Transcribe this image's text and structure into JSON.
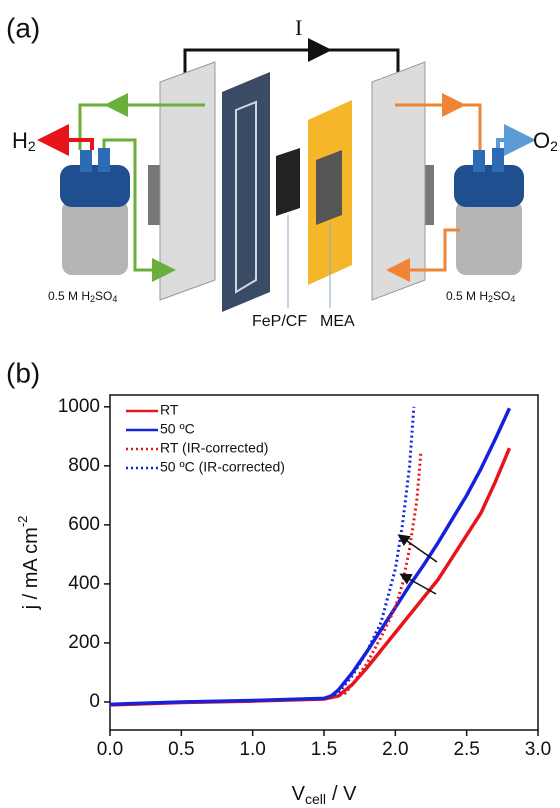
{
  "panel_a": {
    "label": "(a)",
    "current": "I",
    "h2": [
      "H",
      "2"
    ],
    "o2": [
      "O",
      "2"
    ],
    "acid_left": [
      "0.5 M H",
      "2",
      "SO",
      "4"
    ],
    "acid_right": [
      "0.5 M H",
      "2",
      "SO",
      "4"
    ],
    "catalyst": "FeP/CF",
    "membrane": "MEA"
  },
  "panel_b_label": "(b)",
  "chart_data": {
    "type": "line",
    "xlabel": [
      "V",
      "cell",
      "/ V"
    ],
    "ylabel": [
      "j / mA cm",
      "-2"
    ],
    "xlim": [
      0,
      3
    ],
    "ylim": [
      -95,
      1040
    ],
    "xticks": [
      {
        "value": 0,
        "label": "0.0"
      },
      {
        "value": 0.5,
        "label": "0.5"
      },
      {
        "value": 1,
        "label": "1.0"
      },
      {
        "value": 1.5,
        "label": "1.5"
      },
      {
        "value": 2,
        "label": "2.0"
      },
      {
        "value": 2.5,
        "label": "2.5"
      },
      {
        "value": 3,
        "label": "3.0"
      }
    ],
    "yticks": [
      0,
      200,
      400,
      600,
      800,
      1000
    ],
    "legend": "upper left",
    "series": [
      {
        "name": "RT",
        "color": "#e8141c",
        "style": "solid",
        "x": [
          0,
          0.5,
          1.0,
          1.5,
          1.6,
          1.7,
          1.8,
          1.9,
          2.0,
          2.1,
          2.2,
          2.3,
          2.4,
          2.5,
          2.6,
          2.7,
          2.8
        ],
        "values": [
          -10,
          -2,
          3,
          10,
          20,
          60,
          115,
          175,
          235,
          295,
          355,
          415,
          490,
          565,
          640,
          745,
          860
        ]
      },
      {
        "name": "50 ºC",
        "color": "#1422e0",
        "style": "solid",
        "x": [
          0,
          0.5,
          1.0,
          1.5,
          1.55,
          1.6,
          1.7,
          1.8,
          1.9,
          2.0,
          2.1,
          2.2,
          2.3,
          2.4,
          2.5,
          2.6,
          2.7,
          2.8
        ],
        "values": [
          -8,
          0,
          5,
          12,
          20,
          40,
          100,
          170,
          245,
          320,
          395,
          465,
          540,
          620,
          700,
          790,
          890,
          995
        ]
      },
      {
        "name": "RT (IR-corrected)",
        "color": "#e8141c",
        "style": "dotted",
        "x": [
          0,
          0.5,
          1.0,
          1.5,
          1.6,
          1.65,
          1.7,
          1.8,
          1.9,
          2.0,
          2.05,
          2.1,
          2.15,
          2.18
        ],
        "values": [
          -10,
          -2,
          3,
          10,
          20,
          30,
          60,
          130,
          220,
          320,
          400,
          520,
          680,
          850
        ]
      },
      {
        "name": "50 ºC (IR-corrected)",
        "color": "#1422e0",
        "style": "dotted",
        "x": [
          0,
          0.5,
          1.0,
          1.5,
          1.55,
          1.6,
          1.7,
          1.8,
          1.9,
          1.95,
          2.0,
          2.05,
          2.1,
          2.13
        ],
        "values": [
          -8,
          0,
          5,
          12,
          20,
          30,
          90,
          170,
          270,
          360,
          450,
          600,
          800,
          1000
        ]
      }
    ]
  }
}
